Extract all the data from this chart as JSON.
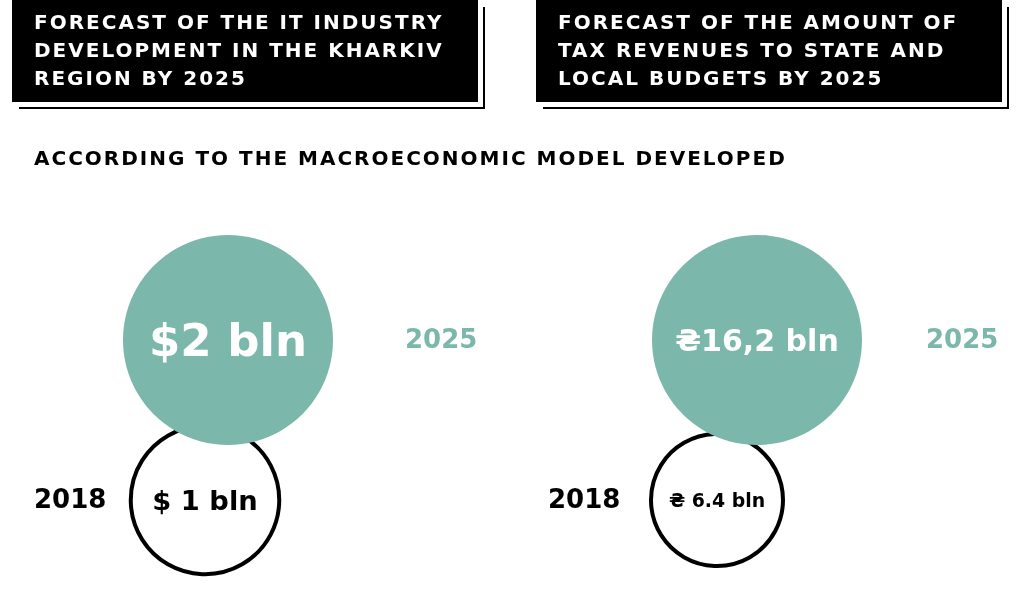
{
  "chart_data": [
    {
      "type": "other",
      "title": "FORECAST OF THE IT INDUSTRY DEVELOPMENT IN THE KHARKIV REGION BY 2025",
      "subtitle": "ACCORDING TO THE MACROECONOMIC MODEL DEVELOPED",
      "categories": [
        "2025",
        "2018"
      ],
      "values": [
        2,
        1
      ],
      "value_labels": [
        "$2 bln",
        "$ 1 bln"
      ],
      "colors": [
        "#7bb7ab",
        "#ffffff"
      ]
    },
    {
      "type": "other",
      "title": "FORECAST OF THE AMOUNT OF TAX REVENUES TO STATE AND LOCAL BUDGETS BY 2025",
      "categories": [
        "2025",
        "2018"
      ],
      "values": [
        16.2,
        6.4
      ],
      "value_labels": [
        "₴16,2 bln",
        "₴ 6.4 bln"
      ],
      "colors": [
        "#7bb7ab",
        "#ffffff"
      ]
    }
  ]
}
